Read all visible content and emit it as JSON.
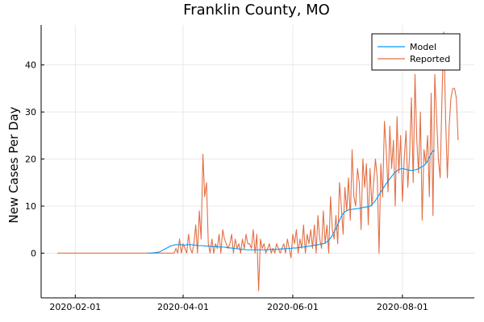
{
  "chart_data": {
    "type": "line",
    "title": "Franklin County, MO",
    "xlabel": "",
    "ylabel": "New Cases Per Day",
    "x_start_date": "2020-01-22",
    "x_end_date": "2020-09-08",
    "x_ticks": [
      "2020-02-01",
      "2020-04-01",
      "2020-06-01",
      "2020-08-01"
    ],
    "y_ticks": [
      0,
      10,
      20,
      30,
      40
    ],
    "xlim": [
      "2020-01-13",
      "2020-09-10"
    ],
    "ylim": [
      -9.5,
      48.5
    ],
    "grid": true,
    "legend_position": "top-right",
    "series": [
      {
        "name": "Model",
        "color": "#009af9",
        "x_start": "2020-03-12",
        "values": [
          0,
          0,
          0,
          0.05,
          0.1,
          0.15,
          0.2,
          0.3,
          0.5,
          0.7,
          0.9,
          1.1,
          1.3,
          1.5,
          1.6,
          1.7,
          1.8,
          1.8,
          1.8,
          1.8,
          1.7,
          1.7,
          1.8,
          1.8,
          1.8,
          1.8,
          1.7,
          1.7,
          1.6,
          1.6,
          1.6,
          1.6,
          1.5,
          1.5,
          1.5,
          1.5,
          1.4,
          1.4,
          1.4,
          1.4,
          1.3,
          1.3,
          1.3,
          1.3,
          1.2,
          1.2,
          1.1,
          1.1,
          1.0,
          1.0,
          0.9,
          0.9,
          0.8,
          0.8,
          0.8,
          0.7,
          0.7,
          0.7,
          0.7,
          0.7,
          0.7,
          0.7,
          0.7,
          0.7,
          0.7,
          0.7,
          0.7,
          0.7,
          0.8,
          0.8,
          0.8,
          0.8,
          0.8,
          0.8,
          0.9,
          0.9,
          0.9,
          1.0,
          1.0,
          1.0,
          1.0,
          1.1,
          1.1,
          1.1,
          1.2,
          1.2,
          1.3,
          1.3,
          1.4,
          1.4,
          1.5,
          1.5,
          1.6,
          1.7,
          1.7,
          1.8,
          1.9,
          2.0,
          2.0,
          2.2,
          2.4,
          2.8,
          3.2,
          3.8,
          4.5,
          5.2,
          6.0,
          7.0,
          7.8,
          8.4,
          8.8,
          9.0,
          9.2,
          9.3,
          9.3,
          9.4,
          9.4,
          9.5,
          9.5,
          9.6,
          9.7,
          9.8,
          9.8,
          9.9,
          10.0,
          10.3,
          10.7,
          11.2,
          11.8,
          12.4,
          13.0,
          13.6,
          14.2,
          14.8,
          15.3,
          15.8,
          16.3,
          16.8,
          17.2,
          17.5,
          17.8,
          17.9,
          18.0,
          17.9,
          17.8,
          17.7,
          17.6,
          17.6,
          17.6,
          17.7,
          17.8,
          18.0,
          18.2,
          18.4,
          18.6,
          19.0,
          19.6,
          20.4,
          21.2,
          21.7,
          21.8
        ]
      },
      {
        "name": "Reported",
        "color": "#e26f46",
        "x_start": "2020-01-22",
        "values": [
          0,
          0,
          0,
          0,
          0,
          0,
          0,
          0,
          0,
          0,
          0,
          0,
          0,
          0,
          0,
          0,
          0,
          0,
          0,
          0,
          0,
          0,
          0,
          0,
          0,
          0,
          0,
          0,
          0,
          0,
          0,
          0,
          0,
          0,
          0,
          0,
          0,
          0,
          0,
          0,
          0,
          0,
          0,
          0,
          0,
          0,
          0,
          0,
          0,
          0,
          0,
          0,
          0,
          0,
          0,
          0,
          0,
          0,
          0,
          0,
          0,
          0,
          0,
          0,
          0,
          0,
          1,
          0,
          3,
          0,
          2,
          1,
          0,
          4,
          1,
          0,
          2,
          6,
          0,
          9,
          3,
          21,
          12,
          15,
          2,
          0,
          3,
          0,
          2,
          1,
          4,
          0,
          5,
          3,
          2,
          1,
          2,
          4,
          0,
          3,
          1,
          2,
          0,
          3,
          1,
          4,
          2,
          2,
          1,
          5,
          0,
          4,
          -8,
          3,
          1,
          2,
          0,
          1,
          2,
          0,
          1,
          0,
          2,
          1,
          0,
          1,
          2,
          0,
          3,
          1,
          -1,
          4,
          2,
          5,
          0,
          3,
          1,
          6,
          0,
          4,
          2,
          5,
          1,
          6,
          0,
          8,
          3,
          1,
          9,
          2,
          6,
          0,
          12,
          5,
          3,
          8,
          2,
          15,
          10,
          4,
          14,
          9,
          16,
          7,
          22,
          12,
          10,
          18,
          15,
          5,
          20,
          14,
          19,
          6,
          18,
          10,
          15,
          20,
          16,
          0,
          19,
          12,
          28,
          22,
          13,
          27,
          18,
          24,
          10,
          29,
          17,
          25,
          11,
          20,
          26,
          14,
          21,
          33,
          15,
          38,
          24,
          17,
          30,
          7,
          22,
          19,
          25,
          12,
          34,
          8,
          38,
          29,
          20,
          16,
          33,
          47,
          29,
          16,
          27,
          33,
          35,
          35,
          33,
          24
        ]
      }
    ]
  }
}
